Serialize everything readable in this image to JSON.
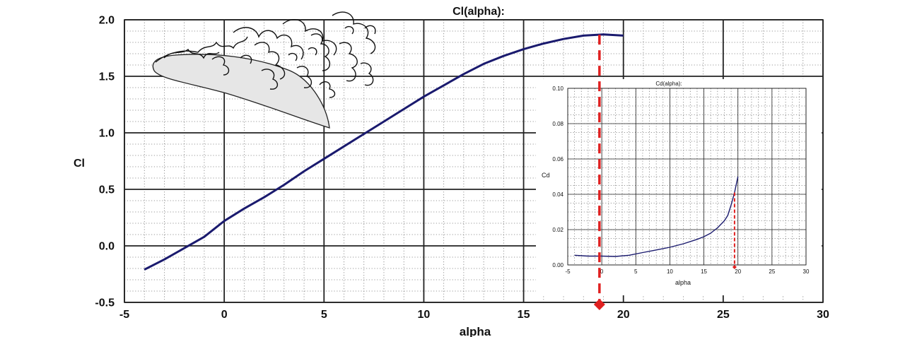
{
  "chart_data": [
    {
      "type": "line",
      "title": "Cl(alpha):",
      "xlabel": "alpha",
      "ylabel": "Cl",
      "xlim": [
        -5,
        30
      ],
      "ylim": [
        -0.5,
        2.0
      ],
      "xticks": [
        -5,
        0,
        5,
        10,
        15,
        20,
        25,
        30
      ],
      "yticks": [
        "-0.5",
        "0.0",
        "0.5",
        "1.0",
        "1.5",
        "2.0"
      ],
      "grid": true,
      "series": [
        {
          "color": "#1a1a6e",
          "x": [
            -4,
            -3,
            -2,
            -1,
            0,
            1,
            2,
            3,
            4,
            5,
            6,
            7,
            8,
            9,
            10,
            11,
            12,
            13,
            14,
            15,
            16,
            17,
            18,
            19,
            20
          ],
          "y": [
            -0.21,
            -0.12,
            -0.02,
            0.08,
            0.22,
            0.33,
            0.43,
            0.54,
            0.66,
            0.77,
            0.88,
            0.99,
            1.1,
            1.21,
            1.32,
            1.42,
            1.52,
            1.61,
            1.68,
            1.74,
            1.79,
            1.83,
            1.86,
            1.87,
            1.86
          ]
        }
      ],
      "annotation": {
        "type": "dashed-vertical-marker",
        "x": 18.8,
        "color": "#e02020"
      },
      "inset_illustration": "airfoil-with-separated-flow"
    },
    {
      "type": "line",
      "title": "Cd(alpha):",
      "xlabel": "alpha",
      "ylabel": "Cd",
      "xlim": [
        -5,
        30
      ],
      "ylim": [
        0.0,
        0.1
      ],
      "xticks": [
        -5,
        0,
        5,
        10,
        15,
        20,
        25,
        30
      ],
      "yticks": [
        "0.00",
        "0.02",
        "0.04",
        "0.06",
        "0.08",
        "0.10"
      ],
      "grid": true,
      "series": [
        {
          "color": "#1a1a6e",
          "x": [
            -4,
            -2,
            0,
            2,
            4,
            6,
            8,
            10,
            12,
            14,
            15,
            16,
            17,
            18,
            18.5,
            19,
            19.5,
            20
          ],
          "y": [
            0.0055,
            0.005,
            0.005,
            0.0048,
            0.0055,
            0.007,
            0.0085,
            0.01,
            0.012,
            0.0145,
            0.016,
            0.018,
            0.021,
            0.025,
            0.028,
            0.034,
            0.041,
            0.05
          ]
        }
      ],
      "annotation": {
        "type": "dashed-vertical-marker",
        "x": 19.5,
        "color": "#e02020"
      }
    }
  ]
}
